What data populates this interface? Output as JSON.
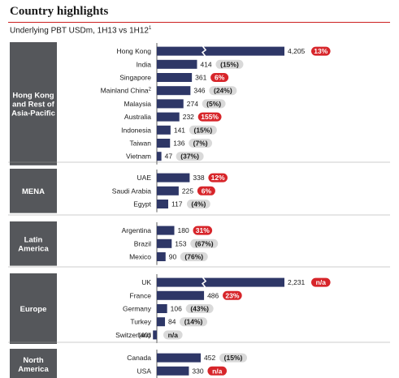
{
  "header": {
    "title": "Country highlights",
    "subtitle": "Underlying PBT USDm, 1H13 vs 1H12",
    "subtitle_sup": "1"
  },
  "colors": {
    "bar": "#2e3767",
    "region_box": "#55575b",
    "pill_positive": "#d7252a",
    "pill_negative": "#d9d9d9",
    "title_rule": "#cc1f1f"
  },
  "chart_data": {
    "type": "bar",
    "orientation": "horizontal",
    "title": "Country highlights",
    "subtitle": "Underlying PBT USDm, 1H13 vs 1H12",
    "series": [
      {
        "name": "",
        "values": []
      }
    ],
    "broken_axis_note": "Hong Kong, UK bars truncated (axis break)",
    "regions": [
      {
        "name": "Hong Kong and Rest of Asia-Pacific",
        "label_lines": [
          "Hong Kong",
          "and Rest of",
          "Asia-Pacific"
        ],
        "items": [
          {
            "country": "Hong Kong",
            "value": 4205,
            "value_label": "4,205",
            "change": "13%",
            "positive": true,
            "broken": true
          },
          {
            "country": "India",
            "value": 414,
            "value_label": "414",
            "change": "(15%)",
            "positive": false
          },
          {
            "country": "Singapore",
            "value": 361,
            "value_label": "361",
            "change": "6%",
            "positive": true
          },
          {
            "country": "Mainland China",
            "country_sup": "2",
            "value": 346,
            "value_label": "346",
            "change": "(24%)",
            "positive": false
          },
          {
            "country": "Malaysia",
            "value": 274,
            "value_label": "274",
            "change": "(5%)",
            "positive": false
          },
          {
            "country": "Australia",
            "value": 232,
            "value_label": "232",
            "change": "155%",
            "positive": true
          },
          {
            "country": "Indonesia",
            "value": 141,
            "value_label": "141",
            "change": "(15%)",
            "positive": false
          },
          {
            "country": "Taiwan",
            "value": 136,
            "value_label": "136",
            "change": "(7%)",
            "positive": false
          },
          {
            "country": "Vietnam",
            "value": 47,
            "value_label": "47",
            "change": "(37%)",
            "positive": false
          }
        ]
      },
      {
        "name": "MENA",
        "label_lines": [
          "MENA"
        ],
        "items": [
          {
            "country": "UAE",
            "value": 338,
            "value_label": "338",
            "change": "12%",
            "positive": true
          },
          {
            "country": "Saudi Arabia",
            "value": 225,
            "value_label": "225",
            "change": "6%",
            "positive": true
          },
          {
            "country": "Egypt",
            "value": 117,
            "value_label": "117",
            "change": "(4%)",
            "positive": false
          }
        ]
      },
      {
        "name": "Latin America",
        "label_lines": [
          "Latin",
          "America"
        ],
        "items": [
          {
            "country": "Argentina",
            "value": 180,
            "value_label": "180",
            "change": "31%",
            "positive": true
          },
          {
            "country": "Brazil",
            "value": 153,
            "value_label": "153",
            "change": "(67%)",
            "positive": false
          },
          {
            "country": "Mexico",
            "value": 90,
            "value_label": "90",
            "change": "(76%)",
            "positive": false
          }
        ]
      },
      {
        "name": "Europe",
        "label_lines": [
          "Europe"
        ],
        "items": [
          {
            "country": "UK",
            "value": 2231,
            "value_label": "2,231",
            "change": "n/a",
            "positive": true,
            "broken": true
          },
          {
            "country": "France",
            "value": 486,
            "value_label": "486",
            "change": "23%",
            "positive": true
          },
          {
            "country": "Germany",
            "value": 106,
            "value_label": "106",
            "change": "(43%)",
            "positive": false
          },
          {
            "country": "Turkey",
            "value": 84,
            "value_label": "84",
            "change": "(14%)",
            "positive": false
          },
          {
            "country": "Switzerland",
            "value": -40,
            "value_label": "(40)",
            "change": "n/a",
            "positive": false
          }
        ]
      },
      {
        "name": "North America",
        "label_lines": [
          "North",
          "America"
        ],
        "items": [
          {
            "country": "Canada",
            "value": 452,
            "value_label": "452",
            "change": "(15%)",
            "positive": false
          },
          {
            "country": "USA",
            "value": 330,
            "value_label": "330",
            "change": "n/a",
            "positive": true
          }
        ]
      }
    ]
  }
}
